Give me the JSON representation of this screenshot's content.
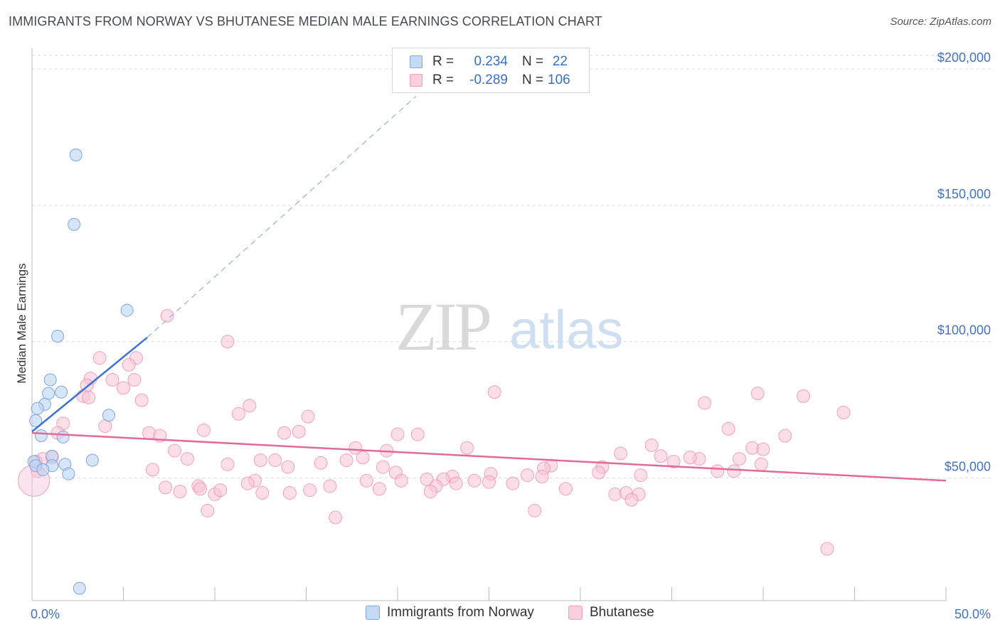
{
  "title": "IMMIGRANTS FROM NORWAY VS BHUTANESE MEDIAN MALE EARNINGS CORRELATION CHART",
  "source": "Source: ZipAtlas.com",
  "watermark": {
    "zip": "ZIP",
    "atlas": "atlas"
  },
  "legend": {
    "rows": [
      {
        "r_label": "R =",
        "r_value": "0.234",
        "n_label": "N =",
        "n_value": "22",
        "color": "#aac8f0",
        "border": "#6f9fe0"
      },
      {
        "r_label": "R =",
        "r_value": "-0.289",
        "n_label": "N =",
        "n_value": "106",
        "color": "#f7bfd2",
        "border": "#ee8fb0"
      }
    ]
  },
  "bottom_legend": [
    {
      "label": "Immigrants from Norway",
      "color": "#c5daf6",
      "border": "#7fa8e2"
    },
    {
      "label": "Bhutanese",
      "color": "#f9cfde",
      "border": "#ef9dbb"
    }
  ],
  "chart_data": {
    "type": "scatter",
    "title": "IMMIGRANTS FROM NORWAY VS BHUTANESE MEDIAN MALE EARNINGS CORRELATION CHART",
    "xlabel": "",
    "ylabel": "Median Male Earnings",
    "xlim": [
      0,
      50
    ],
    "ylim": [
      5000,
      205000
    ],
    "x_tick_labels": [
      "0.0%",
      "50.0%"
    ],
    "y_ticks": [
      50000,
      100000,
      150000,
      200000
    ],
    "y_tick_labels": [
      "$50,000",
      "$100,000",
      "$150,000",
      "$200,000"
    ],
    "grid": true,
    "legend_position": "top-center",
    "series": [
      {
        "name": "Immigrants from Norway",
        "color": "#8fb4e8",
        "line_color": "#3a73d4",
        "points": [
          [
            2.4,
            168500
          ],
          [
            2.3,
            143000
          ],
          [
            5.2,
            111500
          ],
          [
            1.4,
            102000
          ],
          [
            1.0,
            86000
          ],
          [
            1.6,
            81500
          ],
          [
            0.9,
            81000
          ],
          [
            0.7,
            77000
          ],
          [
            0.3,
            75500
          ],
          [
            4.2,
            73000
          ],
          [
            0.2,
            71000
          ],
          [
            0.5,
            65500
          ],
          [
            1.7,
            65000
          ],
          [
            1.1,
            58000
          ],
          [
            0.1,
            56000
          ],
          [
            3.3,
            56500
          ],
          [
            1.8,
            55000
          ],
          [
            1.1,
            54500
          ],
          [
            0.2,
            54500
          ],
          [
            0.6,
            53000
          ],
          [
            2.0,
            51500
          ],
          [
            2.6,
            9500
          ]
        ],
        "trend": {
          "x_solid": [
            0,
            6.3
          ],
          "y_solid": [
            67000,
            101500
          ],
          "x_dashed": [
            6.3,
            21
          ],
          "y_dashed": [
            101500,
            190000
          ]
        }
      },
      {
        "name": "Bhutanese",
        "color": "#f4a9c4",
        "line_color": "#e36a98",
        "points": [
          [
            7.4,
            109500
          ],
          [
            10.7,
            100000
          ],
          [
            3.7,
            94000
          ],
          [
            5.7,
            94000
          ],
          [
            5.3,
            91500
          ],
          [
            3.2,
            86500
          ],
          [
            4.4,
            86000
          ],
          [
            5.6,
            86000
          ],
          [
            3.0,
            84000
          ],
          [
            5.0,
            83000
          ],
          [
            2.8,
            80000
          ],
          [
            3.1,
            79500
          ],
          [
            6.0,
            78500
          ],
          [
            25.3,
            81500
          ],
          [
            39.7,
            81000
          ],
          [
            42.2,
            80000
          ],
          [
            36.8,
            77500
          ],
          [
            11.9,
            76500
          ],
          [
            11.3,
            73500
          ],
          [
            15.1,
            72500
          ],
          [
            44.4,
            74000
          ],
          [
            1.7,
            70000
          ],
          [
            4.0,
            69000
          ],
          [
            1.4,
            66500
          ],
          [
            9.4,
            67500
          ],
          [
            6.4,
            66500
          ],
          [
            14.6,
            67000
          ],
          [
            13.8,
            66500
          ],
          [
            20.0,
            66000
          ],
          [
            21.1,
            66000
          ],
          [
            38.1,
            68000
          ],
          [
            41.2,
            65500
          ],
          [
            7.0,
            65500
          ],
          [
            7.8,
            60000
          ],
          [
            17.7,
            61000
          ],
          [
            19.4,
            60000
          ],
          [
            23.8,
            61000
          ],
          [
            32.2,
            59000
          ],
          [
            33.9,
            62000
          ],
          [
            34.4,
            58000
          ],
          [
            35.1,
            56000
          ],
          [
            36.5,
            57000
          ],
          [
            36.0,
            57500
          ],
          [
            39.4,
            61000
          ],
          [
            40.0,
            60500
          ],
          [
            39.9,
            55000
          ],
          [
            38.7,
            57000
          ],
          [
            38.4,
            52500
          ],
          [
            37.5,
            52500
          ],
          [
            8.5,
            57000
          ],
          [
            12.5,
            56500
          ],
          [
            13.3,
            56500
          ],
          [
            15.8,
            55500
          ],
          [
            17.2,
            56500
          ],
          [
            18.1,
            57500
          ],
          [
            31.2,
            54000
          ],
          [
            33.3,
            51000
          ],
          [
            28.4,
            54500
          ],
          [
            28.0,
            53500
          ],
          [
            27.1,
            51000
          ],
          [
            0.6,
            57000
          ],
          [
            1.1,
            57500
          ],
          [
            0.3,
            52500
          ],
          [
            0.2,
            56000
          ],
          [
            0.1,
            49000
          ],
          [
            6.6,
            53000
          ],
          [
            10.7,
            55000
          ],
          [
            14.0,
            54000
          ],
          [
            19.2,
            54000
          ],
          [
            19.9,
            52000
          ],
          [
            25.1,
            51500
          ],
          [
            23.0,
            50500
          ],
          [
            22.5,
            49500
          ],
          [
            21.6,
            49500
          ],
          [
            24.2,
            49000
          ],
          [
            12.2,
            49000
          ],
          [
            9.1,
            47000
          ],
          [
            7.3,
            46500
          ],
          [
            11.8,
            48000
          ],
          [
            16.3,
            47000
          ],
          [
            18.3,
            49000
          ],
          [
            20.2,
            49000
          ],
          [
            22.1,
            47000
          ],
          [
            23.2,
            48000
          ],
          [
            25.0,
            48500
          ],
          [
            26.3,
            48000
          ],
          [
            27.9,
            50500
          ],
          [
            31.0,
            52000
          ],
          [
            8.1,
            45000
          ],
          [
            9.2,
            46000
          ],
          [
            10.0,
            44000
          ],
          [
            10.3,
            45500
          ],
          [
            12.6,
            44500
          ],
          [
            14.1,
            44500
          ],
          [
            15.2,
            45500
          ],
          [
            19.0,
            46000
          ],
          [
            21.8,
            45000
          ],
          [
            29.2,
            46000
          ],
          [
            31.9,
            44000
          ],
          [
            32.5,
            44500
          ],
          [
            33.2,
            44000
          ],
          [
            32.8,
            42000
          ],
          [
            9.6,
            38000
          ],
          [
            16.6,
            35500
          ],
          [
            27.5,
            38000
          ],
          [
            43.5,
            24000
          ]
        ],
        "trend": {
          "x": [
            0,
            50
          ],
          "y": [
            66500,
            49000
          ]
        }
      }
    ]
  }
}
